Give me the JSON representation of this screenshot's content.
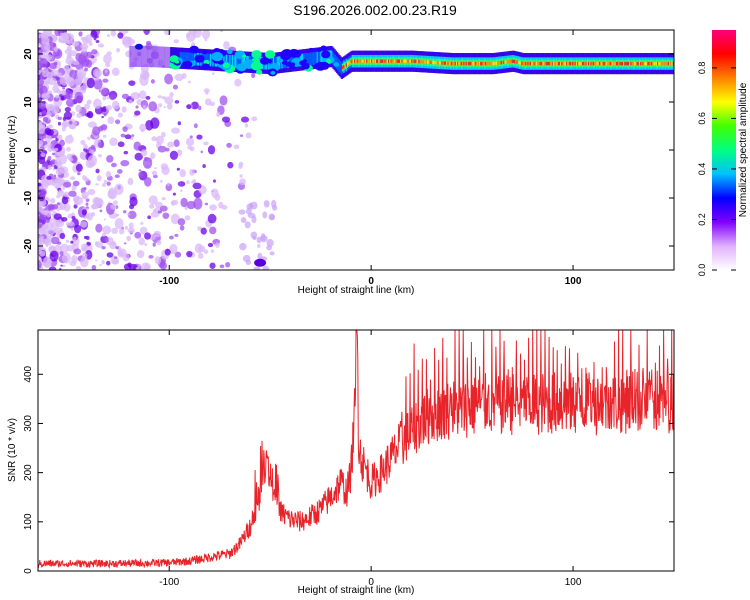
{
  "title": "S196.2026.002.00.23.R19",
  "chart_data": [
    {
      "type": "heatmap",
      "xlabel": "Height of straight line (km)",
      "ylabel": "Frequency (Hz)",
      "xlim": [
        -165,
        150
      ],
      "ylim": [
        -25,
        25
      ],
      "xticks": [
        -100,
        0,
        100
      ],
      "yticks": [
        -20,
        -10,
        0,
        10,
        20
      ],
      "colorbar": {
        "label": "Normalized spectral amplitude",
        "range": [
          0,
          0.95
        ],
        "ticks": [
          0.0,
          0.2,
          0.4,
          0.6,
          0.8
        ],
        "tick_labels": [
          "0.0",
          "0.2",
          "0.4",
          "0.6",
          "0.8"
        ],
        "colormap": [
          "#ffffff",
          "#e0b0ff",
          "#8000ff",
          "#0000ff",
          "#00c0ff",
          "#00ff80",
          "#40ff00",
          "#ffff00",
          "#ff8000",
          "#ff0000",
          "#ff0080"
        ]
      },
      "ridge": {
        "description_values": "dominant frequency line",
        "x": [
          -110,
          -90,
          -70,
          -50,
          -30,
          -20,
          -15,
          -10,
          0,
          20,
          40,
          60,
          70,
          75,
          100,
          150
        ],
        "y": [
          19.5,
          19,
          18.5,
          18,
          19,
          19.5,
          17,
          18.5,
          18.5,
          18.5,
          18,
          18,
          18.5,
          18,
          18,
          18
        ]
      },
      "grid": false
    },
    {
      "type": "line",
      "xlabel": "Height of straight line (km)",
      "ylabel": "SNR (10 * v/v)",
      "xlim": [
        -165,
        150
      ],
      "ylim": [
        0,
        490
      ],
      "xticks": [
        -100,
        0,
        100
      ],
      "yticks": [
        0,
        100,
        200,
        300,
        400
      ],
      "series": [
        {
          "color": "#e8242a",
          "x": [
            -165,
            -150,
            -130,
            -110,
            -100,
            -90,
            -80,
            -70,
            -65,
            -60,
            -55,
            -52,
            -50,
            -45,
            -40,
            -35,
            -30,
            -25,
            -20,
            -15,
            -12,
            -10,
            -8,
            -5,
            0,
            5,
            10,
            15,
            20,
            25,
            30,
            40,
            50,
            60,
            70,
            80,
            90,
            100,
            110,
            120,
            130,
            140,
            150
          ],
          "y": [
            15,
            15,
            15,
            16,
            17,
            20,
            28,
            35,
            55,
            90,
            160,
            240,
            190,
            120,
            105,
            100,
            110,
            125,
            150,
            180,
            160,
            200,
            330,
            230,
            180,
            200,
            230,
            260,
            285,
            305,
            320,
            330,
            335,
            340,
            340,
            340,
            342,
            340,
            340,
            342,
            345,
            345,
            345
          ]
        }
      ],
      "grid": false
    }
  ]
}
